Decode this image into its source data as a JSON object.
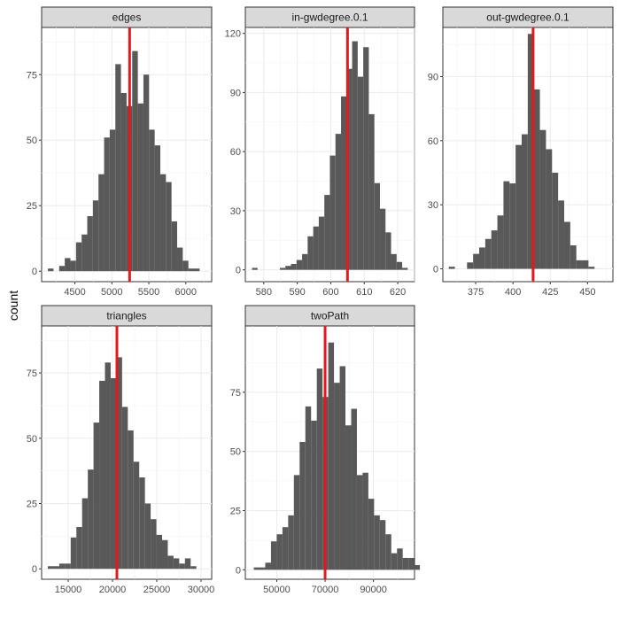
{
  "chart_data": {
    "type": "bar",
    "ylabel": "count",
    "panels": [
      {
        "strip": "edges",
        "xlim": [
          4050,
          6350
        ],
        "ylim": [
          -4,
          93
        ],
        "x_ticks": [
          4500,
          5000,
          5500,
          6000
        ],
        "y_ticks": [
          0,
          25,
          50,
          75
        ],
        "reference_x": 5240,
        "bins": {
          "start": 4135,
          "width": 76,
          "counts": [
            1,
            0,
            2,
            5,
            4,
            11,
            14,
            21,
            27,
            37,
            51,
            54,
            79,
            68,
            63,
            84,
            64,
            75,
            54,
            48,
            37,
            34,
            19,
            9,
            4,
            1,
            1
          ]
        }
      },
      {
        "strip": "in-gwdegree.0.1",
        "xlim": [
          574.5,
          625
        ],
        "ylim": [
          -6,
          123
        ],
        "x_ticks": [
          580,
          590,
          600,
          610,
          620
        ],
        "y_ticks": [
          0,
          30,
          60,
          90,
          120
        ],
        "reference_x": 605,
        "bins": {
          "start": 576.5,
          "width": 1.66,
          "counts": [
            1,
            0,
            0,
            0,
            0,
            1,
            2,
            3,
            5,
            8,
            17,
            22,
            27,
            38,
            58,
            69,
            88,
            102,
            116,
            98,
            113,
            79,
            44,
            31,
            19,
            8,
            4,
            1
          ]
        }
      },
      {
        "strip": "out-gwdegree.0.1",
        "xlim": [
          353,
          467
        ],
        "ylim": [
          -6,
          113
        ],
        "x_ticks": [
          375,
          400,
          425,
          450
        ],
        "y_ticks": [
          0,
          30,
          60,
          90
        ],
        "reference_x": 413.5,
        "bins": {
          "start": 357,
          "width": 4.07,
          "counts": [
            1,
            0,
            0,
            3,
            7,
            10,
            14,
            18,
            25,
            41,
            40,
            58,
            63,
            110,
            84,
            65,
            56,
            45,
            32,
            22,
            11,
            4,
            4,
            1
          ]
        }
      },
      {
        "strip": "triangles",
        "xlim": [
          12000,
          31200
        ],
        "ylim": [
          -4,
          93
        ],
        "x_ticks": [
          15000,
          20000,
          25000,
          30000
        ],
        "y_ticks": [
          0,
          25,
          50,
          75
        ],
        "reference_x": 20500,
        "bins": {
          "start": 12700,
          "width": 645,
          "counts": [
            1,
            1,
            2,
            2,
            12,
            16,
            27,
            38,
            56,
            72,
            79,
            73,
            81,
            62,
            53,
            41,
            35,
            25,
            19,
            13,
            11,
            5,
            4,
            2,
            4,
            1
          ]
        }
      },
      {
        "strip": "twoPath",
        "xlim": [
          37000,
          107000
        ],
        "ylim": [
          -4,
          103
        ],
        "x_ticks": [
          50000,
          70000,
          90000
        ],
        "y_ticks": [
          0,
          25,
          50,
          75
        ],
        "reference_x": 70000,
        "bins": {
          "start": 40500,
          "width": 2370,
          "counts": [
            1,
            1,
            3,
            12,
            15,
            18,
            23,
            40,
            54,
            69,
            63,
            85,
            73,
            96,
            79,
            86,
            61,
            68,
            40,
            41,
            30,
            23,
            21,
            15,
            7,
            9,
            5,
            5,
            2
          ]
        }
      }
    ]
  }
}
